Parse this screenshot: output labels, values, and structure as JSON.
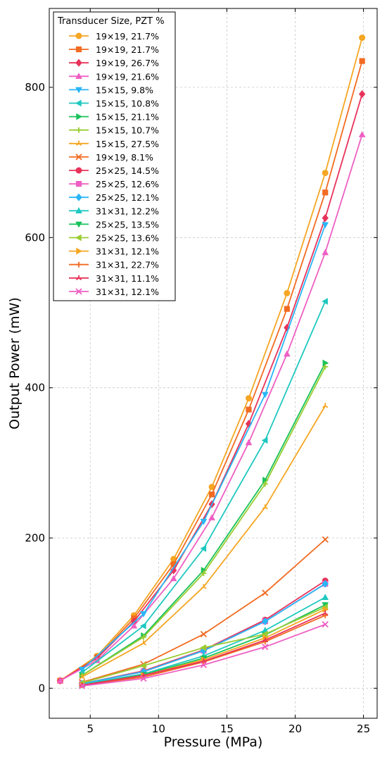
{
  "chart_data": {
    "type": "line",
    "title": "",
    "xlabel": "Pressure (MPa)",
    "ylabel": "Output Power (mW)",
    "xlim": [
      2,
      26
    ],
    "ylim": [
      -40,
      905
    ],
    "xticks": [
      5,
      10,
      15,
      20,
      25
    ],
    "yticks": [
      0,
      200,
      400,
      600,
      800
    ],
    "grid": true,
    "legend_title": "Transducer Size, PZT %",
    "legend_position": "top-left",
    "series": [
      {
        "name": "19×19, 21.7%",
        "color": "#f5a623",
        "marker": "circle",
        "x": [
          2.8,
          5.5,
          8.2,
          11.1,
          13.9,
          16.6,
          19.4,
          22.2,
          24.9
        ],
        "y": [
          10,
          43,
          97,
          172,
          268,
          386,
          526,
          686,
          866
        ]
      },
      {
        "name": "19×19, 21.7%",
        "color": "#f26b22",
        "marker": "square",
        "x": [
          2.8,
          5.5,
          8.2,
          11.1,
          13.9,
          16.6,
          19.4,
          22.2,
          24.9
        ],
        "y": [
          10,
          41,
          93,
          165,
          258,
          371,
          505,
          660,
          835
        ]
      },
      {
        "name": "19×19, 26.7%",
        "color": "#e8325a",
        "marker": "diamond",
        "x": [
          2.8,
          5.5,
          8.2,
          11.1,
          13.9,
          16.6,
          19.4,
          22.2,
          24.9
        ],
        "y": [
          10,
          40,
          89,
          157,
          245,
          352,
          480,
          626,
          791
        ]
      },
      {
        "name": "19×19, 21.6%",
        "color": "#ee5fc3",
        "marker": "triangle-up",
        "x": [
          2.8,
          5.5,
          8.2,
          11.1,
          13.9,
          16.6,
          19.4,
          22.2,
          24.9
        ],
        "y": [
          10,
          37,
          83,
          146,
          227,
          327,
          445,
          580,
          737
        ]
      },
      {
        "name": "15×15, 9.8%",
        "color": "#29b6f6",
        "marker": "triangle-down",
        "x": [
          4.4,
          8.9,
          13.3,
          17.8,
          22.2
        ],
        "y": [
          25,
          99,
          222,
          391,
          617
        ]
      },
      {
        "name": "15×15, 10.8%",
        "color": "#1ec8c0",
        "marker": "triangle-left",
        "x": [
          4.4,
          8.9,
          13.3,
          17.8,
          22.2
        ],
        "y": [
          21,
          83,
          186,
          330,
          515
        ]
      },
      {
        "name": "15×15, 21.1%",
        "color": "#19c25a",
        "marker": "triangle-right",
        "x": [
          4.4,
          8.9,
          13.3,
          17.8,
          22.2
        ],
        "y": [
          17,
          70,
          157,
          277,
          433
        ]
      },
      {
        "name": "15×15, 10.7%",
        "color": "#9acd32",
        "marker": "plus",
        "x": [
          4.4,
          8.9,
          13.3,
          17.8,
          22.2
        ],
        "y": [
          17,
          68,
          153,
          272,
          428
        ]
      },
      {
        "name": "15×15, 27.5%",
        "color": "#f5a623",
        "marker": "tri",
        "x": [
          4.4,
          8.9,
          13.3,
          17.8,
          22.2
        ],
        "y": [
          15,
          60,
          135,
          241,
          376
        ]
      },
      {
        "name": "19×19, 8.1%",
        "color": "#f26b22",
        "marker": "x",
        "x": [
          4.4,
          8.9,
          13.3,
          17.8,
          22.2
        ],
        "y": [
          8,
          32,
          72,
          127,
          198
        ]
      },
      {
        "name": "25×25, 14.5%",
        "color": "#e8325a",
        "marker": "circle",
        "x": [
          4.4,
          8.9,
          13.3,
          17.8,
          22.2
        ],
        "y": [
          6,
          23,
          51,
          91,
          143
        ]
      },
      {
        "name": "25×25, 12.6%",
        "color": "#ee5fc3",
        "marker": "square",
        "x": [
          4.4,
          8.9,
          13.3,
          17.8,
          22.2
        ],
        "y": [
          6,
          22,
          50,
          89,
          139
        ]
      },
      {
        "name": "25×25, 12.1%",
        "color": "#29b6f6",
        "marker": "diamond",
        "x": [
          4.4,
          8.9,
          13.3,
          17.8,
          22.2
        ],
        "y": [
          6,
          22,
          50,
          89,
          139
        ]
      },
      {
        "name": "31×31, 12.2%",
        "color": "#1ec8c0",
        "marker": "triangle-up",
        "x": [
          4.4,
          8.9,
          13.3,
          17.8,
          22.2
        ],
        "y": [
          5,
          19,
          43,
          77,
          121
        ]
      },
      {
        "name": "25×25, 13.5%",
        "color": "#19c25a",
        "marker": "triangle-down",
        "x": [
          4.4,
          8.9,
          13.3,
          17.8,
          22.2
        ],
        "y": [
          4,
          18,
          40,
          71,
          111
        ]
      },
      {
        "name": "25×25, 13.6%",
        "color": "#9acd32",
        "marker": "triangle-left",
        "x": [
          4.4,
          8.9,
          13.3,
          17.8,
          22.2
        ],
        "y": [
          7,
          30,
          54,
          72,
          108
        ]
      },
      {
        "name": "31×31, 12.1%",
        "color": "#f5a623",
        "marker": "triangle-right",
        "x": [
          4.4,
          8.9,
          13.3,
          17.8,
          22.2
        ],
        "y": [
          4,
          17,
          38,
          67,
          105
        ]
      },
      {
        "name": "31×31, 22.7%",
        "color": "#f26b22",
        "marker": "plus",
        "x": [
          4.4,
          8.9,
          13.3,
          17.8,
          22.2
        ],
        "y": [
          4,
          15,
          35,
          62,
          97
        ]
      },
      {
        "name": "31×31, 11.1%",
        "color": "#e8325a",
        "marker": "tri",
        "x": [
          4.4,
          8.9,
          13.3,
          17.8,
          22.2
        ],
        "y": [
          4,
          17,
          36,
          64,
          100
        ]
      },
      {
        "name": "31×31, 12.1%",
        "color": "#ee5fc3",
        "marker": "x",
        "x": [
          4.4,
          8.9,
          13.3,
          17.8,
          22.2
        ],
        "y": [
          3,
          13,
          31,
          55,
          85
        ]
      }
    ]
  }
}
